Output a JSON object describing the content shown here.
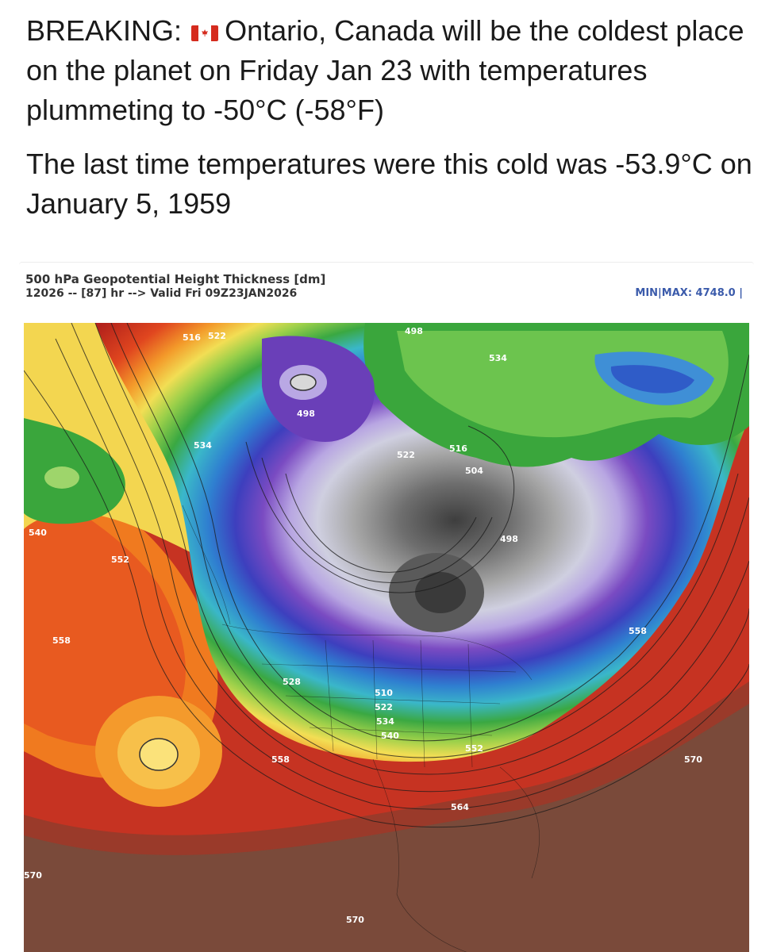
{
  "post": {
    "line1_prefix": "BREAKING:",
    "line1_flag_icon": "canada-flag-icon",
    "line1_rest": "Ontario, Canada will be the coldest place on the planet on Friday Jan 23 with temperatures plummeting to -50°C (-58°F)",
    "line2": "The last time temperatures were this cold was -53.9°C on January 5, 1959"
  },
  "map": {
    "title": "500 hPa Geopotential Height Thickness [dm]",
    "subtitle": "12026 -- [87] hr --> Valid Fri 09Z23JAN2026",
    "minmax": "MIN|MAX: 4748.0 |",
    "contour_labels": {
      "l516a": "516",
      "l522a": "522",
      "l534a": "534",
      "l498": "498",
      "l516b": "516",
      "l522b": "522",
      "l504": "504",
      "l534b": "534",
      "l540a": "540",
      "l552": "552",
      "l558a": "558",
      "l498b": "498",
      "l558b": "558",
      "l528": "528",
      "l510": "510",
      "l522c": "522",
      "l534c": "534",
      "l540b": "540",
      "l558c": "558",
      "l552b": "552",
      "l570a": "570",
      "l564": "564",
      "l570b": "570",
      "l570c": "570"
    },
    "colors": {
      "deep_red": "#b81e1a",
      "red": "#e03a1f",
      "orange": "#f07a1f",
      "yellow": "#f3d650",
      "green": "#3aa63c",
      "cyan": "#36b4d6",
      "blue": "#3c5cc4",
      "purple": "#6a3fb8",
      "lavender": "#cfc6ea",
      "grey": "#8c8c8c",
      "brown": "#7a4a3a"
    }
  }
}
